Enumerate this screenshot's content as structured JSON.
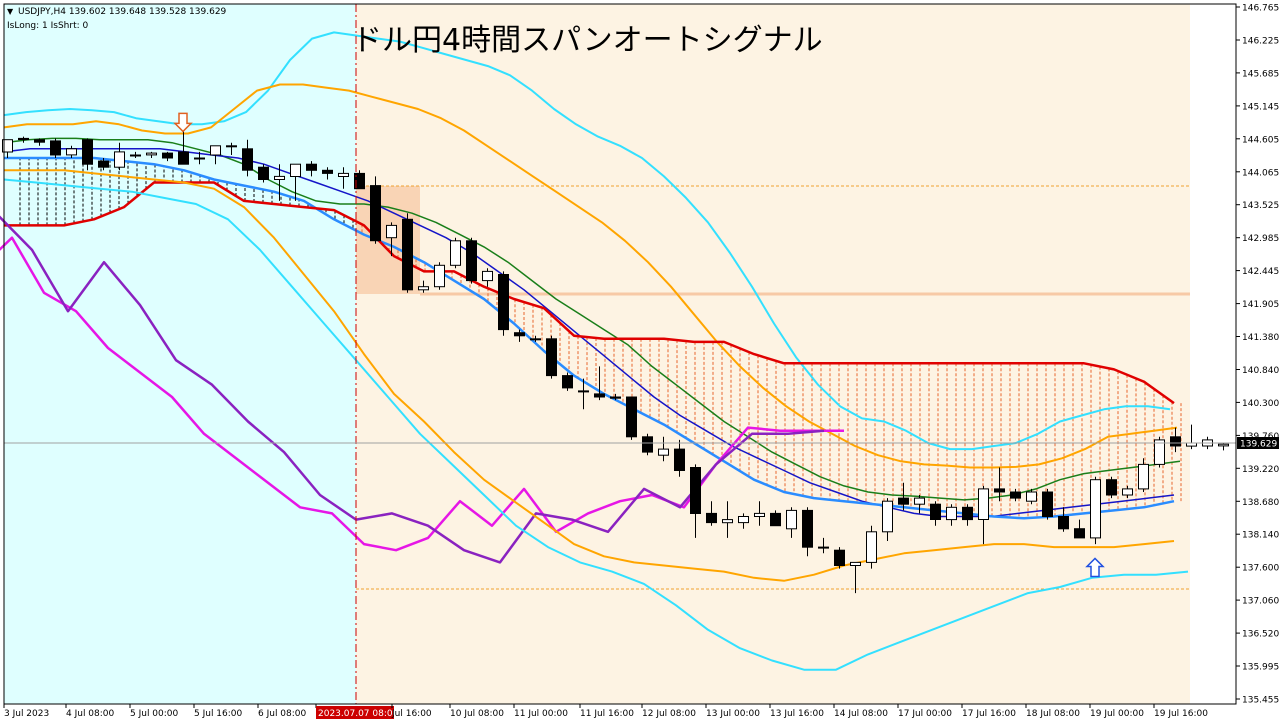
{
  "header": {
    "symbol_line": "USDJPY,H4  139.602 139.648 139.528 139.629",
    "status_line": "IsLong: 1 IsShrt: 0",
    "title": "ドル円4時間スパンオートシグナル"
  },
  "price_axis": {
    "ticks": [
      "146.765",
      "146.225",
      "145.685",
      "145.145",
      "144.605",
      "144.065",
      "143.525",
      "142.985",
      "142.445",
      "141.905",
      "141.380",
      "140.840",
      "140.300",
      "139.760",
      "139.220",
      "138.680",
      "138.140",
      "137.600",
      "137.060",
      "136.520",
      "135.995",
      "135.455"
    ],
    "current_price": "139.629"
  },
  "time_axis": {
    "ticks": [
      "3 Jul 2023",
      "4 Jul 08:00",
      "5 Jul 00:00",
      "5 Jul 16:00",
      "6 Jul 08:00",
      "2023.07.07 08:00",
      "Jul 16:00",
      "10 Jul 08:00",
      "11 Jul 00:00",
      "11 Jul 16:00",
      "12 Jul 08:00",
      "13 Jul 00:00",
      "13 Jul 16:00",
      "14 Jul 08:00",
      "17 Jul 00:00",
      "17 Jul 16:00",
      "18 Jul 08:00",
      "19 Jul 00:00",
      "19 Jul 16:00"
    ]
  },
  "colors": {
    "bull": "#ffffff",
    "bear": "#000000",
    "kijun": "#e00000",
    "bb_outer": "#33e0ff",
    "bb_mid": "#ffa500",
    "ma_green": "#1a7f1a",
    "ma_blue": "#1515c8",
    "ma_lightblue": "#2a8cff",
    "magenta": "#e616e6",
    "purple": "#8a22c0",
    "cursor": "#cc0000",
    "bg_left": "#dfffff",
    "bg_right": "#fdf3e3"
  },
  "chart_data": {
    "type": "candlestick",
    "title": "ドル円4時間スパンオートシグナル",
    "symbol": "USDJPY",
    "timeframe": "H4",
    "ohlc_last": {
      "open": 139.602,
      "high": 139.648,
      "low": 139.528,
      "close": 139.629
    },
    "ylim": [
      135.455,
      146.765
    ],
    "candles": [
      {
        "o": 144.4,
        "h": 144.6,
        "l": 144.3,
        "c": 144.6
      },
      {
        "o": 144.62,
        "h": 144.65,
        "l": 144.55,
        "c": 144.6
      },
      {
        "o": 144.6,
        "h": 144.62,
        "l": 144.5,
        "c": 144.56
      },
      {
        "o": 144.58,
        "h": 144.62,
        "l": 144.3,
        "c": 144.35
      },
      {
        "o": 144.35,
        "h": 144.5,
        "l": 144.3,
        "c": 144.45
      },
      {
        "o": 144.6,
        "h": 144.62,
        "l": 144.1,
        "c": 144.2
      },
      {
        "o": 144.25,
        "h": 144.3,
        "l": 144.1,
        "c": 144.15
      },
      {
        "o": 144.15,
        "h": 144.55,
        "l": 144.1,
        "c": 144.4
      },
      {
        "o": 144.35,
        "h": 144.4,
        "l": 144.3,
        "c": 144.35
      },
      {
        "o": 144.35,
        "h": 144.4,
        "l": 144.3,
        "c": 144.38
      },
      {
        "o": 144.38,
        "h": 144.4,
        "l": 144.25,
        "c": 144.3
      },
      {
        "o": 144.4,
        "h": 144.78,
        "l": 144.2,
        "c": 144.2
      },
      {
        "o": 144.3,
        "h": 144.4,
        "l": 144.2,
        "c": 144.3
      },
      {
        "o": 144.35,
        "h": 144.5,
        "l": 144.2,
        "c": 144.5
      },
      {
        "o": 144.5,
        "h": 144.55,
        "l": 144.35,
        "c": 144.5
      },
      {
        "o": 144.45,
        "h": 144.6,
        "l": 144.0,
        "c": 144.1
      },
      {
        "o": 144.15,
        "h": 144.2,
        "l": 143.9,
        "c": 143.95
      },
      {
        "o": 143.95,
        "h": 144.2,
        "l": 143.6,
        "c": 144.0
      },
      {
        "o": 144.0,
        "h": 144.2,
        "l": 143.6,
        "c": 144.2
      },
      {
        "o": 144.2,
        "h": 144.25,
        "l": 144.0,
        "c": 144.1
      },
      {
        "o": 144.1,
        "h": 144.15,
        "l": 143.95,
        "c": 144.05
      },
      {
        "o": 144.0,
        "h": 144.15,
        "l": 143.8,
        "c": 144.05
      },
      {
        "o": 144.05,
        "h": 144.1,
        "l": 143.8,
        "c": 143.8
      },
      {
        "o": 143.85,
        "h": 144.0,
        "l": 142.9,
        "c": 142.95
      },
      {
        "o": 143.0,
        "h": 143.25,
        "l": 142.7,
        "c": 143.2
      },
      {
        "o": 143.3,
        "h": 143.4,
        "l": 142.1,
        "c": 142.15
      },
      {
        "o": 142.15,
        "h": 142.3,
        "l": 142.1,
        "c": 142.2
      },
      {
        "o": 142.2,
        "h": 142.6,
        "l": 142.15,
        "c": 142.55
      },
      {
        "o": 142.55,
        "h": 143.0,
        "l": 142.5,
        "c": 142.95
      },
      {
        "o": 142.95,
        "h": 143.0,
        "l": 142.25,
        "c": 142.3
      },
      {
        "o": 142.3,
        "h": 142.5,
        "l": 142.2,
        "c": 142.45
      },
      {
        "o": 142.4,
        "h": 142.45,
        "l": 141.4,
        "c": 141.5
      },
      {
        "o": 141.45,
        "h": 141.5,
        "l": 141.3,
        "c": 141.4
      },
      {
        "o": 141.35,
        "h": 141.4,
        "l": 141.3,
        "c": 141.35
      },
      {
        "o": 141.35,
        "h": 141.4,
        "l": 140.7,
        "c": 140.75
      },
      {
        "o": 140.75,
        "h": 140.8,
        "l": 140.5,
        "c": 140.55
      },
      {
        "o": 140.5,
        "h": 140.7,
        "l": 140.2,
        "c": 140.5
      },
      {
        "o": 140.45,
        "h": 140.9,
        "l": 140.35,
        "c": 140.4
      },
      {
        "o": 140.4,
        "h": 140.45,
        "l": 140.35,
        "c": 140.38
      },
      {
        "o": 140.4,
        "h": 140.4,
        "l": 139.7,
        "c": 139.75
      },
      {
        "o": 139.75,
        "h": 139.8,
        "l": 139.45,
        "c": 139.5
      },
      {
        "o": 139.45,
        "h": 139.75,
        "l": 139.35,
        "c": 139.55
      },
      {
        "o": 139.55,
        "h": 139.7,
        "l": 139.1,
        "c": 139.2
      },
      {
        "o": 139.25,
        "h": 139.3,
        "l": 138.1,
        "c": 138.5
      },
      {
        "o": 138.5,
        "h": 138.7,
        "l": 138.3,
        "c": 138.35
      },
      {
        "o": 138.35,
        "h": 138.7,
        "l": 138.1,
        "c": 138.4
      },
      {
        "o": 138.35,
        "h": 138.5,
        "l": 138.25,
        "c": 138.45
      },
      {
        "o": 138.45,
        "h": 138.7,
        "l": 138.3,
        "c": 138.5
      },
      {
        "o": 138.5,
        "h": 138.55,
        "l": 138.3,
        "c": 138.3
      },
      {
        "o": 138.25,
        "h": 138.6,
        "l": 138.1,
        "c": 138.55
      },
      {
        "o": 138.55,
        "h": 138.6,
        "l": 137.8,
        "c": 137.95
      },
      {
        "o": 137.95,
        "h": 138.1,
        "l": 137.85,
        "c": 137.95
      },
      {
        "o": 137.9,
        "h": 137.95,
        "l": 137.6,
        "c": 137.65
      },
      {
        "o": 137.65,
        "h": 137.7,
        "l": 137.2,
        "c": 137.7
      },
      {
        "o": 137.7,
        "h": 138.3,
        "l": 137.6,
        "c": 138.2
      },
      {
        "o": 138.2,
        "h": 138.75,
        "l": 138.05,
        "c": 138.7
      },
      {
        "o": 138.75,
        "h": 139.0,
        "l": 138.55,
        "c": 138.65
      },
      {
        "o": 138.65,
        "h": 138.8,
        "l": 138.5,
        "c": 138.75
      },
      {
        "o": 138.65,
        "h": 138.7,
        "l": 138.3,
        "c": 138.4
      },
      {
        "o": 138.4,
        "h": 138.65,
        "l": 138.3,
        "c": 138.6
      },
      {
        "o": 138.6,
        "h": 138.65,
        "l": 138.3,
        "c": 138.4
      },
      {
        "o": 138.4,
        "h": 138.95,
        "l": 138.0,
        "c": 138.9
      },
      {
        "o": 138.9,
        "h": 139.25,
        "l": 138.7,
        "c": 138.85
      },
      {
        "o": 138.85,
        "h": 138.9,
        "l": 138.7,
        "c": 138.75
      },
      {
        "o": 138.7,
        "h": 138.9,
        "l": 138.65,
        "c": 138.85
      },
      {
        "o": 138.85,
        "h": 138.9,
        "l": 138.4,
        "c": 138.45
      },
      {
        "o": 138.45,
        "h": 138.6,
        "l": 138.2,
        "c": 138.25
      },
      {
        "o": 138.25,
        "h": 138.4,
        "l": 138.1,
        "c": 138.1
      },
      {
        "o": 138.1,
        "h": 139.1,
        "l": 138.0,
        "c": 139.05
      },
      {
        "o": 139.05,
        "h": 139.1,
        "l": 138.75,
        "c": 138.8
      },
      {
        "o": 138.8,
        "h": 138.95,
        "l": 138.75,
        "c": 138.9
      },
      {
        "o": 138.9,
        "h": 139.4,
        "l": 138.85,
        "c": 139.3
      },
      {
        "o": 139.3,
        "h": 139.75,
        "l": 139.25,
        "c": 139.7
      },
      {
        "o": 139.75,
        "h": 139.9,
        "l": 139.5,
        "c": 139.6
      },
      {
        "o": 139.6,
        "h": 139.95,
        "l": 139.55,
        "c": 139.65
      },
      {
        "o": 139.6,
        "h": 139.75,
        "l": 139.55,
        "c": 139.7
      },
      {
        "o": 139.602,
        "h": 139.648,
        "l": 139.528,
        "c": 139.629
      }
    ],
    "series": [
      {
        "key": "bb_upper_outer",
        "values": [
          145.0,
          145.05,
          145.08,
          145.1,
          145.08,
          145.05,
          144.95,
          144.9,
          144.85,
          144.85,
          144.9,
          145.05,
          145.4,
          145.9,
          146.25,
          146.35,
          146.3,
          146.25,
          146.2,
          146.1,
          146.0,
          145.9,
          145.8,
          145.65,
          145.4,
          145.1,
          144.85,
          144.65,
          144.5,
          144.3,
          144.0,
          143.65,
          143.25,
          142.75,
          142.2,
          141.6,
          141.05,
          140.6,
          140.25,
          140.05,
          140.0,
          139.85,
          139.65,
          139.55,
          139.55,
          139.6,
          139.65,
          139.8,
          140.0,
          140.1,
          140.2,
          140.25,
          140.25,
          140.2
        ]
      },
      {
        "key": "bb_upper",
        "values": [
          144.8,
          144.85,
          144.85,
          144.85,
          144.9,
          144.85,
          144.75,
          144.7,
          144.7,
          144.8,
          145.1,
          145.4,
          145.5,
          145.5,
          145.45,
          145.4,
          145.3,
          145.2,
          145.1,
          144.95,
          144.75,
          144.5,
          144.25,
          144.0,
          143.75,
          143.5,
          143.25,
          142.95,
          142.6,
          142.2,
          141.75,
          141.3,
          140.9,
          140.55,
          140.25,
          140.0,
          139.8,
          139.6,
          139.45,
          139.35,
          139.3,
          139.28,
          139.25,
          139.25,
          139.26,
          139.3,
          139.4,
          139.55,
          139.75,
          139.8,
          139.85,
          139.9
        ]
      },
      {
        "key": "ma_green",
        "values": [
          144.55,
          144.6,
          144.62,
          144.62,
          144.6,
          144.6,
          144.6,
          144.55,
          144.45,
          144.35,
          144.2,
          143.95,
          143.75,
          143.6,
          143.55,
          143.55,
          143.5,
          143.4,
          143.25,
          143.05,
          142.85,
          142.6,
          142.3,
          142.0,
          141.75,
          141.5,
          141.25,
          140.9,
          140.6,
          140.3,
          140.0,
          139.75,
          139.5,
          139.3,
          139.1,
          138.95,
          138.85,
          138.8,
          138.78,
          138.75,
          138.72,
          138.75,
          138.8,
          138.9,
          139.05,
          139.15,
          139.2,
          139.25,
          139.3,
          139.35
        ]
      },
      {
        "key": "ma_blue",
        "values": [
          144.4,
          144.45,
          144.45,
          144.45,
          144.45,
          144.45,
          144.45,
          144.4,
          144.35,
          144.3,
          144.2,
          144.05,
          143.9,
          143.75,
          143.6,
          143.4,
          143.2,
          143.0,
          142.75,
          142.45,
          142.15,
          141.8,
          141.45,
          141.1,
          140.75,
          140.4,
          140.1,
          139.85,
          139.6,
          139.4,
          139.2,
          139.0,
          138.85,
          138.7,
          138.6,
          138.5,
          138.45,
          138.45,
          138.45,
          138.5,
          138.55,
          138.6,
          138.65,
          138.7,
          138.75,
          138.8
        ]
      },
      {
        "key": "ma_lightblue",
        "values": [
          144.3,
          144.3,
          144.3,
          144.3,
          144.25,
          144.2,
          144.1,
          143.95,
          143.85,
          143.75,
          143.6,
          143.3,
          143.05,
          142.85,
          142.6,
          142.3,
          142.0,
          141.6,
          141.15,
          140.75,
          140.45,
          140.2,
          139.95,
          139.65,
          139.35,
          139.05,
          138.85,
          138.75,
          138.7,
          138.65,
          138.6,
          138.55,
          138.5,
          138.45,
          138.42,
          138.45,
          138.5,
          138.55,
          138.6,
          138.7
        ]
      },
      {
        "key": "kijun",
        "values": [
          143.2,
          143.2,
          143.2,
          143.3,
          143.5,
          143.9,
          143.9,
          143.9,
          143.6,
          143.55,
          143.5,
          143.45,
          143.2,
          142.7,
          142.45,
          142.45,
          142.2,
          142.0,
          141.85,
          141.4,
          141.35,
          141.35,
          141.35,
          141.3,
          141.3,
          141.1,
          140.95,
          140.95,
          140.95,
          140.95,
          140.95,
          140.95,
          140.95,
          140.95,
          140.95,
          140.95,
          140.95,
          140.85,
          140.65,
          140.3
        ]
      },
      {
        "key": "magenta",
        "values": [
          142.5,
          143.0,
          142.1,
          141.8,
          141.2,
          140.8,
          140.4,
          139.8,
          139.4,
          139.0,
          138.6,
          138.5,
          138.0,
          137.9,
          138.1,
          138.7,
          138.3,
          138.9,
          138.2,
          138.5,
          138.7,
          138.8,
          138.6,
          139.3,
          139.9,
          139.85,
          139.85,
          139.85
        ]
      },
      {
        "key": "purple",
        "values": [
          143.8,
          143.4,
          142.8,
          141.8,
          142.6,
          141.9,
          141.0,
          140.6,
          140.0,
          139.5,
          138.8,
          138.4,
          138.5,
          138.3,
          137.9,
          137.7,
          138.5,
          138.4,
          138.2,
          138.9,
          138.6,
          139.3,
          139.8,
          139.8,
          139.85
        ]
      },
      {
        "key": "bb_lower",
        "values": [
          144.1,
          144.1,
          144.1,
          144.05,
          144.0,
          143.95,
          143.9,
          143.8,
          143.5,
          143.0,
          142.4,
          141.8,
          141.1,
          140.45,
          140.0,
          139.5,
          139.05,
          138.7,
          138.35,
          138.0,
          137.8,
          137.7,
          137.65,
          137.6,
          137.55,
          137.45,
          137.4,
          137.5,
          137.65,
          137.75,
          137.85,
          137.9,
          137.95,
          138.0,
          138.0,
          137.95,
          137.95,
          137.95,
          138.0,
          138.05
        ]
      },
      {
        "key": "bb_lower_outer",
        "values": [
          143.95,
          143.9,
          143.85,
          143.8,
          143.75,
          143.65,
          143.55,
          143.3,
          142.8,
          142.2,
          141.6,
          141.0,
          140.4,
          139.8,
          139.3,
          138.8,
          138.3,
          137.95,
          137.7,
          137.55,
          137.35,
          137.0,
          136.6,
          136.3,
          136.1,
          135.95,
          135.95,
          136.2,
          136.4,
          136.6,
          136.8,
          137.0,
          137.2,
          137.3,
          137.45,
          137.5,
          137.5,
          137.55
        ]
      }
    ],
    "signals": [
      {
        "type": "sell",
        "candle_index": 11,
        "price": 144.8
      },
      {
        "type": "buy",
        "candle_index": 68,
        "price": 137.7
      }
    ]
  }
}
